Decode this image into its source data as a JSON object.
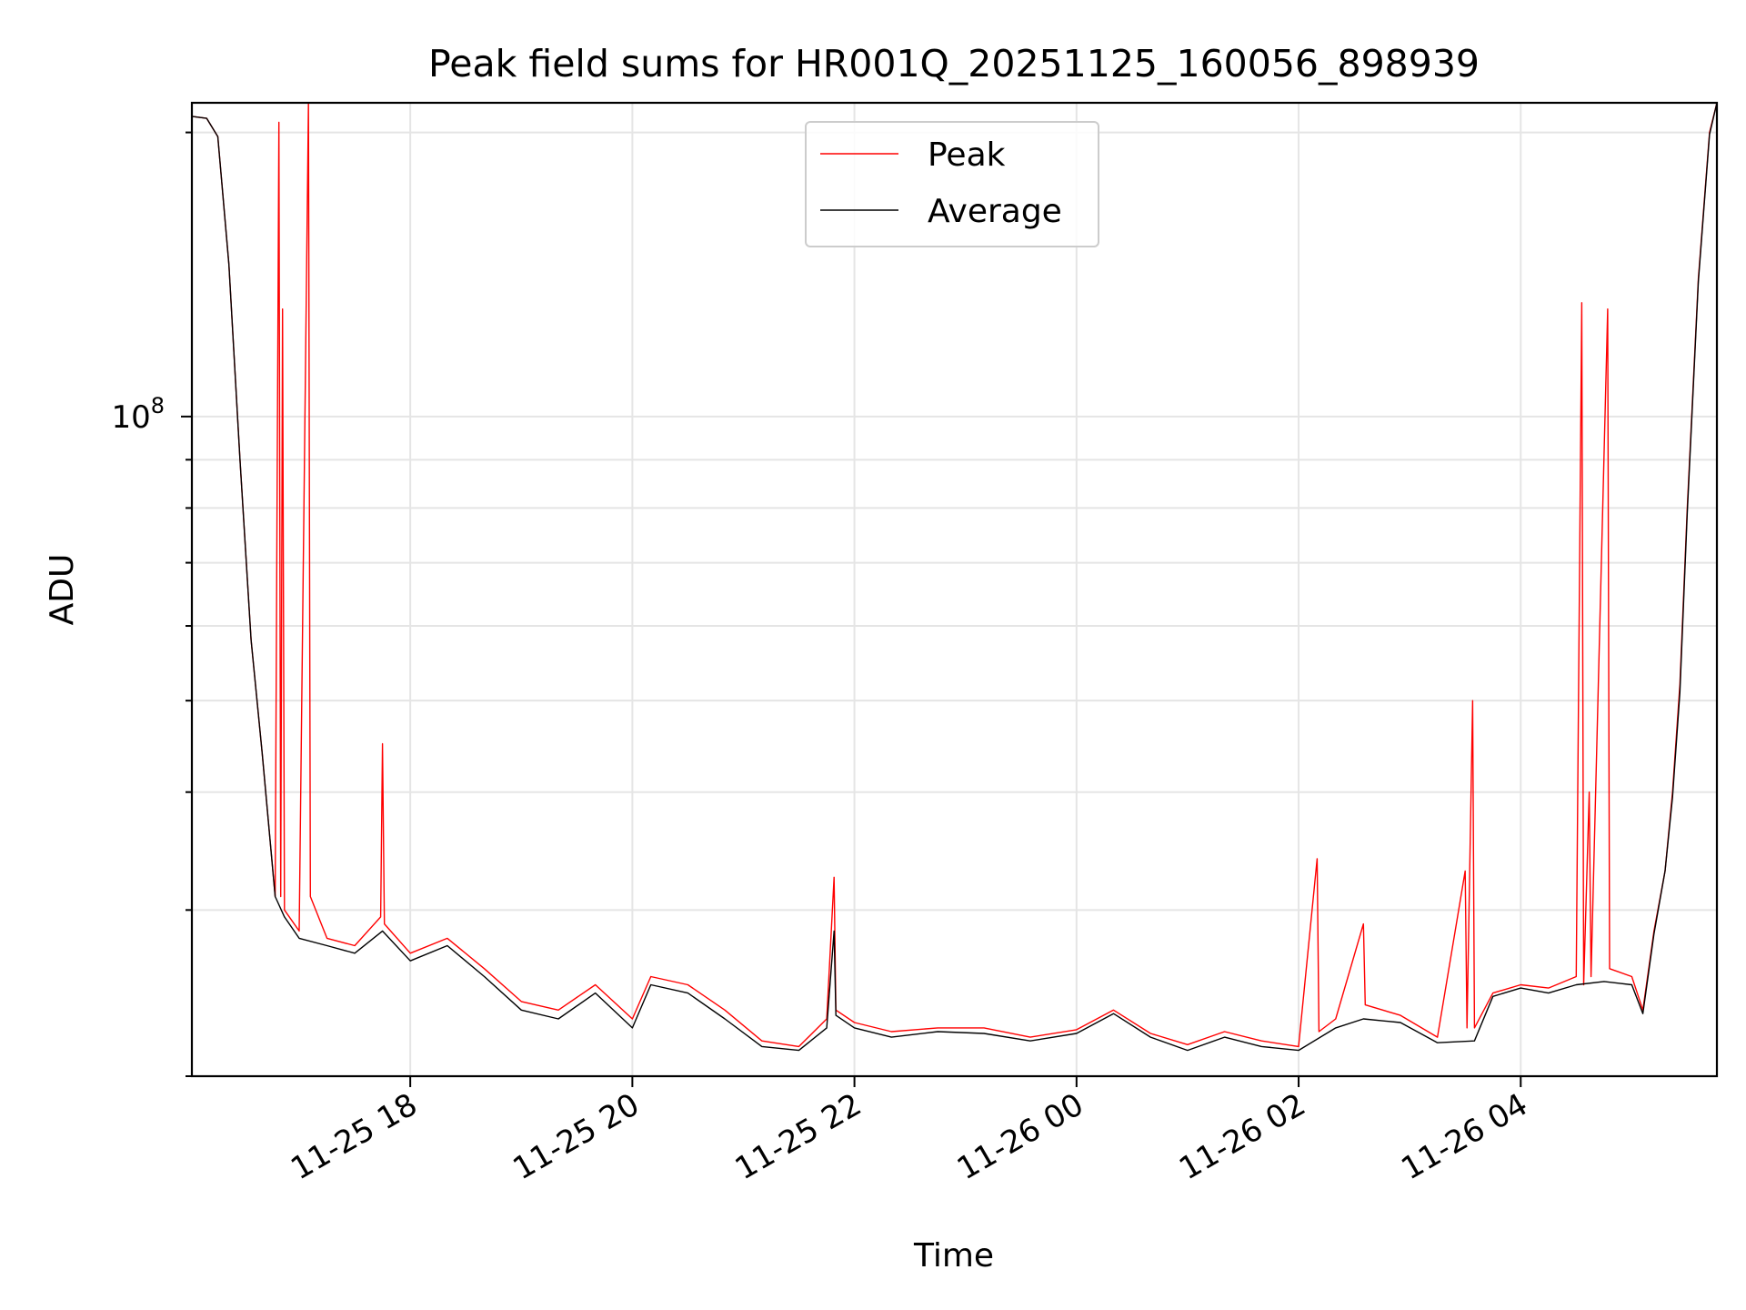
{
  "chart_data": {
    "type": "line",
    "title": "Peak field sums for HR001Q_20251125_160056_898939",
    "xlabel": "Time",
    "ylabel": "ADU",
    "x_unit": "datetime (MM-DD HH)",
    "xlim": [
      "11-25 16:02",
      "11-26 05:46"
    ],
    "xticks": [
      {
        "t": "11-25 18:00",
        "label": "11-25 18"
      },
      {
        "t": "11-25 20:00",
        "label": "11-25 20"
      },
      {
        "t": "11-25 22:00",
        "label": "11-25 22"
      },
      {
        "t": "11-26 00:00",
        "label": "11-26 00"
      },
      {
        "t": "11-26 02:00",
        "label": "11-26 02"
      },
      {
        "t": "11-26 04:00",
        "label": "11-26 04"
      }
    ],
    "yscale": "log",
    "ylim": [
      20000000,
      215000000
    ],
    "ytick_major": [
      {
        "value": 100000000,
        "label": "10",
        "exponent": "8"
      }
    ],
    "ytick_minor": [
      20000000,
      30000000,
      40000000,
      50000000,
      60000000,
      70000000,
      80000000,
      90000000,
      200000000
    ],
    "grid": true,
    "legend": {
      "position": "upper center",
      "entries": [
        "Peak",
        "Average"
      ]
    },
    "series": [
      {
        "name": "Peak",
        "color": "#ff0000",
        "points": [
          [
            "11-25 16:02",
            208000000
          ],
          [
            "11-25 16:10",
            207000000
          ],
          [
            "11-25 16:16",
            198000000
          ],
          [
            "11-25 16:22",
            145000000
          ],
          [
            "11-25 16:28",
            90000000
          ],
          [
            "11-25 16:34",
            58000000
          ],
          [
            "11-25 16:40",
            44000000
          ],
          [
            "11-25 16:44",
            36000000
          ],
          [
            "11-25 16:47",
            31000000
          ],
          [
            "11-25 16:49",
            205000000
          ],
          [
            "11-25 16:50",
            31000000
          ],
          [
            "11-25 16:51",
            130000000
          ],
          [
            "11-25 16:52",
            30000000
          ],
          [
            "11-25 17:00",
            28500000
          ],
          [
            "11-25 17:05",
            215000000
          ],
          [
            "11-25 17:06",
            31000000
          ],
          [
            "11-25 17:15",
            28000000
          ],
          [
            "11-25 17:30",
            27500000
          ],
          [
            "11-25 17:44",
            29500000
          ],
          [
            "11-25 17:45",
            45000000
          ],
          [
            "11-25 17:46",
            29000000
          ],
          [
            "11-25 18:00",
            27000000
          ],
          [
            "11-25 18:20",
            28000000
          ],
          [
            "11-25 18:40",
            26000000
          ],
          [
            "11-25 19:00",
            24000000
          ],
          [
            "11-25 19:20",
            23500000
          ],
          [
            "11-25 19:40",
            25000000
          ],
          [
            "11-25 20:00",
            23000000
          ],
          [
            "11-25 20:10",
            25500000
          ],
          [
            "11-25 20:30",
            25000000
          ],
          [
            "11-25 20:50",
            23500000
          ],
          [
            "11-25 21:10",
            21800000
          ],
          [
            "11-25 21:30",
            21500000
          ],
          [
            "11-25 21:45",
            23000000
          ],
          [
            "11-25 21:49",
            32500000
          ],
          [
            "11-25 21:50",
            23500000
          ],
          [
            "11-25 22:00",
            22800000
          ],
          [
            "11-25 22:20",
            22300000
          ],
          [
            "11-25 22:45",
            22500000
          ],
          [
            "11-25 23:10",
            22500000
          ],
          [
            "11-25 23:35",
            22000000
          ],
          [
            "11-26 00:00",
            22400000
          ],
          [
            "11-26 00:20",
            23500000
          ],
          [
            "11-26 00:40",
            22200000
          ],
          [
            "11-26 01:00",
            21600000
          ],
          [
            "11-26 01:20",
            22300000
          ],
          [
            "11-26 01:40",
            21800000
          ],
          [
            "11-26 02:00",
            21500000
          ],
          [
            "11-26 02:10",
            34000000
          ],
          [
            "11-26 02:11",
            22300000
          ],
          [
            "11-26 02:20",
            23000000
          ],
          [
            "11-26 02:35",
            29000000
          ],
          [
            "11-26 02:36",
            23800000
          ],
          [
            "11-26 02:55",
            23200000
          ],
          [
            "11-26 03:15",
            22000000
          ],
          [
            "11-26 03:30",
            33000000
          ],
          [
            "11-26 03:31",
            22500000
          ],
          [
            "11-26 03:34",
            50000000
          ],
          [
            "11-26 03:35",
            22500000
          ],
          [
            "11-26 03:45",
            24500000
          ],
          [
            "11-26 04:00",
            25000000
          ],
          [
            "11-26 04:15",
            24800000
          ],
          [
            "11-26 04:30",
            25500000
          ],
          [
            "11-26 04:33",
            132000000
          ],
          [
            "11-26 04:34",
            25000000
          ],
          [
            "11-26 04:37",
            40000000
          ],
          [
            "11-26 04:38",
            25500000
          ],
          [
            "11-26 04:47",
            130000000
          ],
          [
            "11-26 04:48",
            26000000
          ],
          [
            "11-26 05:00",
            25500000
          ],
          [
            "11-26 05:06",
            23500000
          ],
          [
            "11-26 05:12",
            28500000
          ],
          [
            "11-26 05:18",
            33000000
          ],
          [
            "11-26 05:22",
            40000000
          ],
          [
            "11-26 05:26",
            52000000
          ],
          [
            "11-26 05:30",
            80000000
          ],
          [
            "11-26 05:36",
            140000000
          ],
          [
            "11-26 05:42",
            200000000
          ],
          [
            "11-26 05:46",
            215000000
          ]
        ]
      },
      {
        "name": "Average",
        "color": "#000000",
        "points": [
          [
            "11-25 16:02",
            208000000
          ],
          [
            "11-25 16:10",
            207000000
          ],
          [
            "11-25 16:16",
            198000000
          ],
          [
            "11-25 16:22",
            145000000
          ],
          [
            "11-25 16:28",
            90000000
          ],
          [
            "11-25 16:34",
            58000000
          ],
          [
            "11-25 16:40",
            44000000
          ],
          [
            "11-25 16:44",
            36000000
          ],
          [
            "11-25 16:47",
            31000000
          ],
          [
            "11-25 16:52",
            29500000
          ],
          [
            "11-25 17:00",
            28000000
          ],
          [
            "11-25 17:15",
            27500000
          ],
          [
            "11-25 17:30",
            27000000
          ],
          [
            "11-25 17:45",
            28500000
          ],
          [
            "11-25 18:00",
            26500000
          ],
          [
            "11-25 18:20",
            27500000
          ],
          [
            "11-25 18:40",
            25500000
          ],
          [
            "11-25 19:00",
            23500000
          ],
          [
            "11-25 19:20",
            23000000
          ],
          [
            "11-25 19:40",
            24500000
          ],
          [
            "11-25 20:00",
            22500000
          ],
          [
            "11-25 20:10",
            25000000
          ],
          [
            "11-25 20:30",
            24500000
          ],
          [
            "11-25 20:50",
            23000000
          ],
          [
            "11-25 21:10",
            21500000
          ],
          [
            "11-25 21:30",
            21300000
          ],
          [
            "11-25 21:45",
            22500000
          ],
          [
            "11-25 21:49",
            28500000
          ],
          [
            "11-25 21:50",
            23200000
          ],
          [
            "11-25 22:00",
            22500000
          ],
          [
            "11-25 22:20",
            22000000
          ],
          [
            "11-25 22:45",
            22300000
          ],
          [
            "11-25 23:10",
            22200000
          ],
          [
            "11-25 23:35",
            21800000
          ],
          [
            "11-26 00:00",
            22200000
          ],
          [
            "11-26 00:20",
            23300000
          ],
          [
            "11-26 00:40",
            22000000
          ],
          [
            "11-26 01:00",
            21300000
          ],
          [
            "11-26 01:20",
            22000000
          ],
          [
            "11-26 01:40",
            21500000
          ],
          [
            "11-26 02:00",
            21300000
          ],
          [
            "11-26 02:20",
            22500000
          ],
          [
            "11-26 02:35",
            23000000
          ],
          [
            "11-26 02:55",
            22800000
          ],
          [
            "11-26 03:15",
            21700000
          ],
          [
            "11-26 03:35",
            21800000
          ],
          [
            "11-26 03:45",
            24300000
          ],
          [
            "11-26 04:00",
            24800000
          ],
          [
            "11-26 04:15",
            24500000
          ],
          [
            "11-26 04:30",
            25000000
          ],
          [
            "11-26 04:45",
            25200000
          ],
          [
            "11-26 05:00",
            25000000
          ],
          [
            "11-26 05:06",
            23300000
          ],
          [
            "11-26 05:12",
            28300000
          ],
          [
            "11-26 05:18",
            33000000
          ],
          [
            "11-26 05:22",
            39500000
          ],
          [
            "11-26 05:26",
            51000000
          ],
          [
            "11-26 05:30",
            79000000
          ],
          [
            "11-26 05:36",
            139000000
          ],
          [
            "11-26 05:42",
            199000000
          ],
          [
            "11-26 05:46",
            215000000
          ]
        ]
      }
    ]
  }
}
